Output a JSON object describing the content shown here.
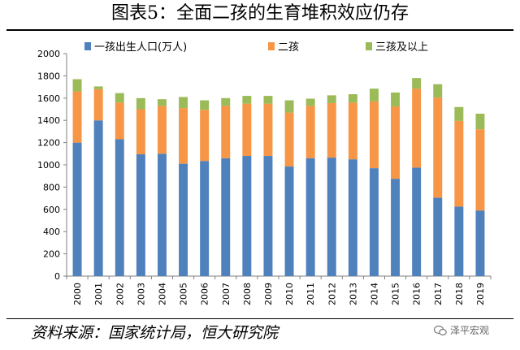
{
  "title": "图表5：全面二孩的生育堆积效应仍存",
  "source": "资料来源：国家统计局，恒大研究院",
  "watermark": "泽平宏观",
  "colors": {
    "first": "#4F81BD",
    "second": "#F79646",
    "third": "#9BBB59",
    "grid": "#d9d9d9",
    "axis": "#808080"
  },
  "chart_data": {
    "type": "bar",
    "stacked": true,
    "categories": [
      "2000",
      "2001",
      "2002",
      "2003",
      "2004",
      "2005",
      "2006",
      "2007",
      "2008",
      "2009",
      "2010",
      "2011",
      "2012",
      "2013",
      "2014",
      "2015",
      "2016",
      "2017",
      "2018",
      "2019"
    ],
    "series": [
      {
        "name": "一孩出生人口(万人)",
        "values": [
          1200,
          1400,
          1230,
          1095,
          1100,
          1010,
          1035,
          1060,
          1080,
          1080,
          985,
          1060,
          1065,
          1050,
          970,
          875,
          975,
          705,
          625,
          590
        ]
      },
      {
        "name": "二孩",
        "values": [
          460,
          280,
          330,
          405,
          430,
          500,
          460,
          470,
          470,
          470,
          485,
          470,
          490,
          510,
          600,
          650,
          710,
          900,
          770,
          730
        ]
      },
      {
        "name": "三孩及以上",
        "values": [
          110,
          25,
          85,
          100,
          60,
          100,
          85,
          70,
          70,
          70,
          110,
          65,
          70,
          75,
          115,
          125,
          95,
          120,
          125,
          140
        ]
      }
    ],
    "ylim": [
      0,
      2000
    ],
    "yticks": [
      "0",
      "200",
      "400",
      "600",
      "800",
      "1000",
      "1200",
      "1400",
      "1600",
      "1800",
      "2000"
    ],
    "grid": false,
    "legend": "top"
  }
}
